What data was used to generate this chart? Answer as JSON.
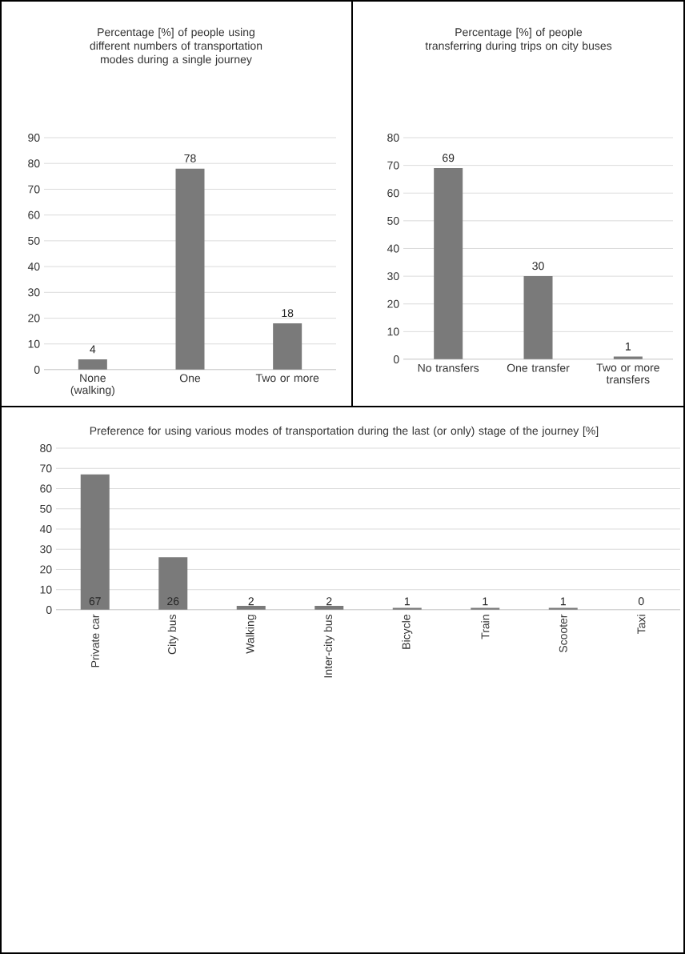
{
  "chart_data": [
    {
      "type": "bar",
      "title": "Percentage [%] of people using different numbers of transportation modes during a single journey",
      "categories": [
        "None (walking)",
        "One",
        "Two or more"
      ],
      "values": [
        4,
        78,
        18
      ],
      "color": "#7a7a7a",
      "ylim": [
        0,
        90
      ],
      "yticks": [
        0,
        10,
        20,
        30,
        40,
        50,
        60,
        70,
        80,
        90
      ],
      "grid": "y",
      "data_labels": true
    },
    {
      "type": "bar",
      "title": "Percentage [%] of people transferring during trips on city buses",
      "categories": [
        "No transfers",
        "One transfer",
        "Two or more transfers"
      ],
      "values": [
        69,
        30,
        1
      ],
      "color": "#7a7a7a",
      "ylim": [
        0,
        80
      ],
      "yticks": [
        0,
        10,
        20,
        30,
        40,
        50,
        60,
        70,
        80
      ],
      "grid": "y",
      "data_labels": true
    },
    {
      "type": "bar",
      "title": "Preference for using various modes of transportation during the last (or only) stage of the journey [%]",
      "categories": [
        "Private car",
        "City bus",
        "Walking",
        "Inter-city bus",
        "Bicycle",
        "Train",
        "Scooter",
        "Taxi"
      ],
      "values": [
        67,
        26,
        2,
        2,
        1,
        1,
        1,
        0
      ],
      "color": "#7a7a7a",
      "ylim": [
        0,
        80
      ],
      "yticks": [
        0,
        10,
        20,
        30,
        40,
        50,
        60,
        70,
        80
      ],
      "grid": "y",
      "data_labels": true
    }
  ]
}
